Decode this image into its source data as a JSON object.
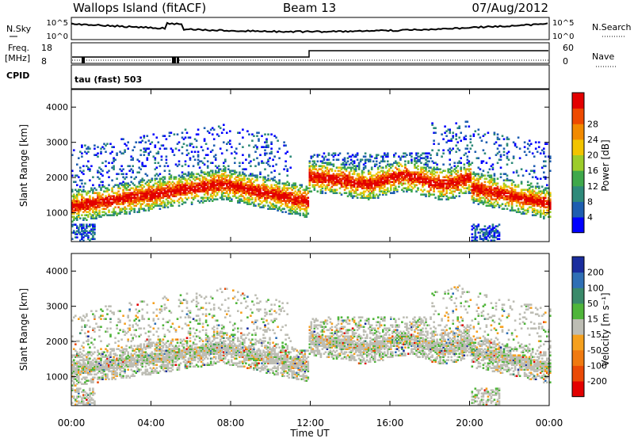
{
  "header": {
    "station": "Wallops Island (fitACF)",
    "beam": "Beam 13",
    "date": "07/Aug/2012"
  },
  "aux": {
    "nsky_label": "N.Sky",
    "nsearch_label": "N.Search",
    "noise_tick_top": "10^5",
    "noise_tick_bottom": "10^0",
    "freq_label": "Freq.",
    "freq_unit": "[MHz]",
    "freq_tick_top": "18",
    "freq_tick_bottom": "8",
    "nave_label": "Nave",
    "nave_tick_top": "60",
    "nave_tick_bottom": "0",
    "cpid_label": "CPID",
    "cpid_value": "tau (fast) 503"
  },
  "chart_data": [
    {
      "type": "heatmap",
      "title": "",
      "ylabel": "Slant Range [km]",
      "xlabel": "",
      "xlim": [
        0,
        24
      ],
      "ylim": [
        180,
        4500
      ],
      "yticks": [
        "1000",
        "2000",
        "3000",
        "4000"
      ],
      "colorbar": {
        "label": "Power [dB]",
        "ticks": [
          "4",
          "8",
          "12",
          "16",
          "20",
          "24",
          "28"
        ],
        "colors": [
          "#0000ff",
          "#1e5eb0",
          "#2e8a7a",
          "#3fa84b",
          "#9ccc2a",
          "#f2c400",
          "#f28a00",
          "#ee4a00",
          "#e30000"
        ]
      }
    },
    {
      "type": "heatmap",
      "title": "",
      "ylabel": "Slant Range [km]",
      "xlabel": "Time UT",
      "xlim": [
        0,
        24
      ],
      "ylim": [
        180,
        4500
      ],
      "yticks": [
        "1000",
        "2000",
        "3000",
        "4000"
      ],
      "xticks": [
        "00:00",
        "04:00",
        "08:00",
        "12:00",
        "16:00",
        "20:00",
        "00:00"
      ],
      "colorbar": {
        "label": "Velocity [m s⁻¹]",
        "ticks": [
          "200",
          "100",
          "50",
          "15",
          "-15",
          "-50",
          "-100",
          "-200"
        ],
        "colors": [
          "#1a2d9e",
          "#2f6fb5",
          "#3a8a6a",
          "#4fb53a",
          "#bdbdb4",
          "#f5a01e",
          "#f07a10",
          "#ea4a06",
          "#e30000"
        ]
      }
    }
  ]
}
